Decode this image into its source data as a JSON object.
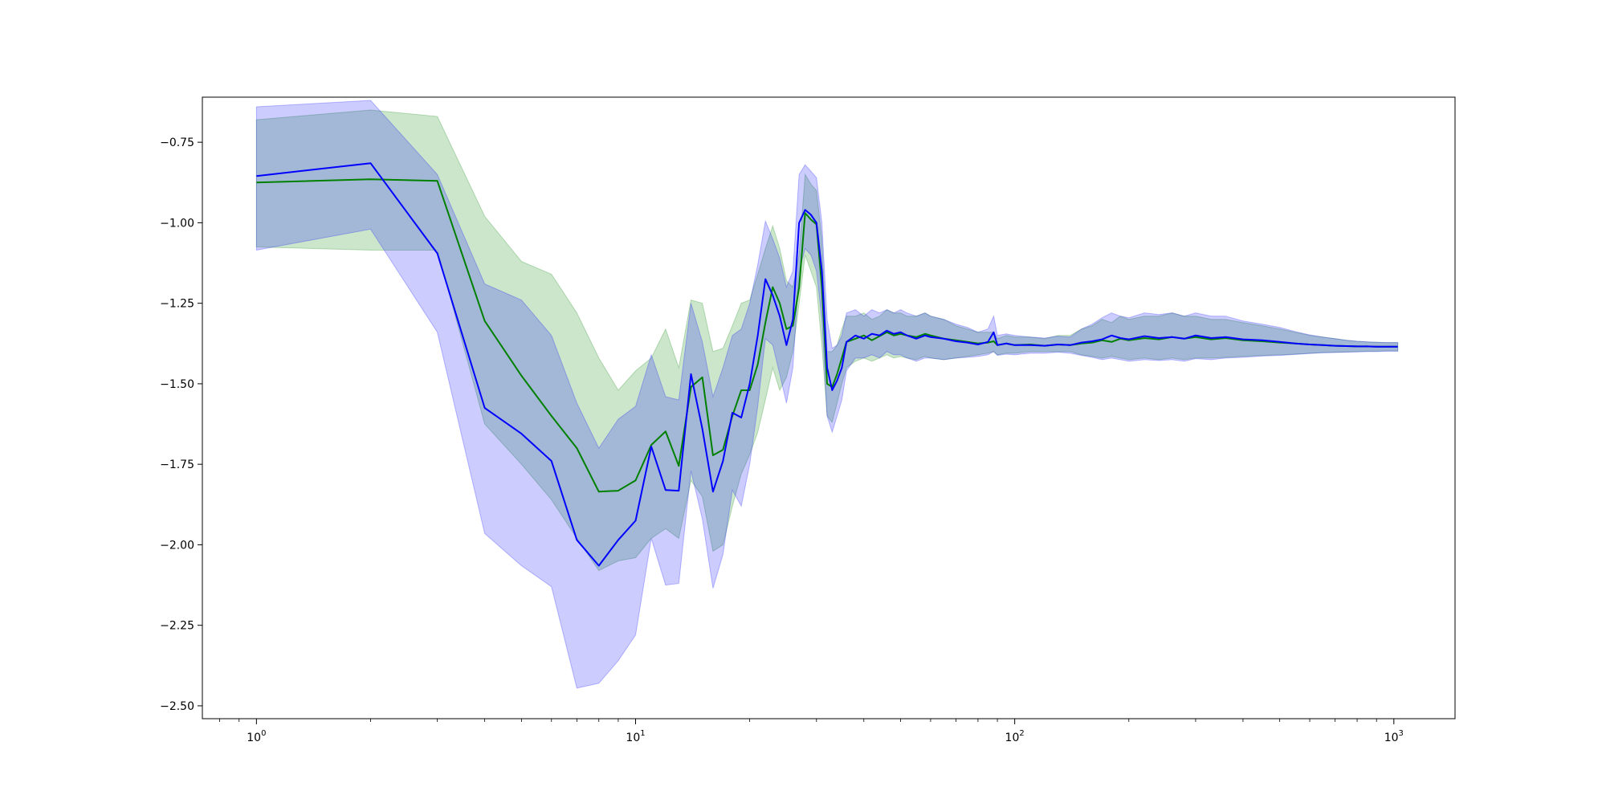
{
  "chart_data": {
    "type": "line",
    "title": "",
    "xlabel": "",
    "ylabel": "",
    "xscale": "log",
    "xlim": [
      0.72,
      1450
    ],
    "ylim": [
      -2.54,
      -0.61
    ],
    "grid": false,
    "legend": "none",
    "x_ticks": [
      {
        "base": "10",
        "exp": "0",
        "value": 1
      },
      {
        "base": "10",
        "exp": "1",
        "value": 10
      },
      {
        "base": "10",
        "exp": "2",
        "value": 100
      },
      {
        "base": "10",
        "exp": "3",
        "value": 1000
      }
    ],
    "y_ticks": [
      {
        "label": "−0.75",
        "value": -0.75
      },
      {
        "label": "−1.00",
        "value": -1.0
      },
      {
        "label": "−1.25",
        "value": -1.25
      },
      {
        "label": "−1.50",
        "value": -1.5
      },
      {
        "label": "−1.75",
        "value": -1.75
      },
      {
        "label": "−2.00",
        "value": -2.0
      },
      {
        "label": "−2.25",
        "value": -2.25
      },
      {
        "label": "−2.50",
        "value": -2.5
      }
    ],
    "series": [
      {
        "color": "#008000",
        "band_color": "#008000",
        "band_opacity": 0.2,
        "x": [
          1,
          2,
          3,
          4,
          5,
          6,
          7,
          8,
          9,
          10,
          11,
          12,
          13,
          14,
          15,
          16,
          17,
          18,
          19,
          20,
          21,
          22,
          23,
          24,
          25,
          26,
          27,
          28,
          29,
          30,
          31,
          32,
          33,
          34,
          35,
          36,
          38,
          40,
          42,
          44,
          46,
          48,
          50,
          52,
          55,
          58,
          60,
          65,
          70,
          75,
          80,
          85,
          88,
          90,
          95,
          100,
          110,
          120,
          130,
          140,
          150,
          160,
          170,
          180,
          190,
          200,
          220,
          240,
          260,
          280,
          300,
          330,
          360,
          400,
          450,
          500,
          550,
          600,
          650,
          700,
          750,
          800,
          850,
          900,
          950,
          1000,
          1024
        ],
        "y": [
          -0.875,
          -0.865,
          -0.87,
          -1.305,
          -1.475,
          -1.6,
          -1.7,
          -1.835,
          -1.832,
          -1.8,
          -1.69,
          -1.648,
          -1.755,
          -1.51,
          -1.48,
          -1.722,
          -1.705,
          -1.6,
          -1.52,
          -1.52,
          -1.44,
          -1.31,
          -1.2,
          -1.25,
          -1.33,
          -1.32,
          -1.2,
          -0.97,
          -0.99,
          -1.005,
          -1.2,
          -1.5,
          -1.51,
          -1.47,
          -1.42,
          -1.37,
          -1.36,
          -1.35,
          -1.365,
          -1.352,
          -1.34,
          -1.35,
          -1.345,
          -1.35,
          -1.355,
          -1.345,
          -1.35,
          -1.36,
          -1.365,
          -1.37,
          -1.375,
          -1.372,
          -1.368,
          -1.38,
          -1.375,
          -1.38,
          -1.378,
          -1.382,
          -1.378,
          -1.38,
          -1.375,
          -1.372,
          -1.365,
          -1.37,
          -1.36,
          -1.365,
          -1.358,
          -1.362,
          -1.355,
          -1.36,
          -1.355,
          -1.362,
          -1.358,
          -1.365,
          -1.368,
          -1.372,
          -1.375,
          -1.378,
          -1.38,
          -1.382,
          -1.383,
          -1.384,
          -1.384,
          -1.385,
          -1.385,
          -1.385,
          -1.385
        ],
        "y_low": [
          -1.075,
          -1.085,
          -1.085,
          -1.625,
          -1.75,
          -1.86,
          -1.98,
          -2.08,
          -2.05,
          -2.04,
          -1.98,
          -1.95,
          -1.98,
          -1.8,
          -1.85,
          -2.02,
          -2.0,
          -1.88,
          -1.78,
          -1.72,
          -1.65,
          -1.55,
          -1.45,
          -1.52,
          -1.48,
          -1.4,
          -1.25,
          -1.1,
          -1.15,
          -1.2,
          -1.38,
          -1.6,
          -1.62,
          -1.56,
          -1.5,
          -1.45,
          -1.43,
          -1.42,
          -1.43,
          -1.42,
          -1.41,
          -1.42,
          -1.415,
          -1.42,
          -1.425,
          -1.415,
          -1.42,
          -1.425,
          -1.42,
          -1.415,
          -1.41,
          -1.405,
          -1.4,
          -1.41,
          -1.405,
          -1.405,
          -1.4,
          -1.4,
          -1.4,
          -1.4,
          -1.41,
          -1.415,
          -1.42,
          -1.415,
          -1.42,
          -1.425,
          -1.42,
          -1.425,
          -1.42,
          -1.425,
          -1.42,
          -1.42,
          -1.418,
          -1.415,
          -1.412,
          -1.41,
          -1.408,
          -1.405,
          -1.403,
          -1.402,
          -1.401,
          -1.4,
          -1.399,
          -1.399,
          -1.398,
          -1.398,
          -1.398
        ],
        "y_high": [
          -0.68,
          -0.65,
          -0.67,
          -0.98,
          -1.12,
          -1.16,
          -1.28,
          -1.42,
          -1.52,
          -1.46,
          -1.42,
          -1.33,
          -1.45,
          -1.24,
          -1.25,
          -1.4,
          -1.39,
          -1.32,
          -1.25,
          -1.24,
          -1.16,
          -1.08,
          -1.01,
          -1.08,
          -1.18,
          -1.2,
          -1.1,
          -0.85,
          -0.88,
          -0.9,
          -1.05,
          -1.4,
          -1.4,
          -1.38,
          -1.33,
          -1.29,
          -1.29,
          -1.28,
          -1.3,
          -1.29,
          -1.27,
          -1.28,
          -1.28,
          -1.29,
          -1.29,
          -1.28,
          -1.29,
          -1.3,
          -1.32,
          -1.33,
          -1.34,
          -1.34,
          -1.34,
          -1.36,
          -1.35,
          -1.355,
          -1.355,
          -1.36,
          -1.35,
          -1.35,
          -1.33,
          -1.32,
          -1.3,
          -1.31,
          -1.29,
          -1.3,
          -1.29,
          -1.29,
          -1.28,
          -1.29,
          -1.29,
          -1.3,
          -1.3,
          -1.31,
          -1.32,
          -1.33,
          -1.34,
          -1.35,
          -1.355,
          -1.36,
          -1.365,
          -1.368,
          -1.37,
          -1.371,
          -1.372,
          -1.372,
          -1.372
        ]
      },
      {
        "color": "#0000ff",
        "band_color": "#0000ff",
        "band_opacity": 0.2,
        "x": [
          1,
          2,
          3,
          4,
          5,
          6,
          7,
          8,
          9,
          10,
          11,
          12,
          13,
          14,
          15,
          16,
          17,
          18,
          19,
          20,
          21,
          22,
          23,
          24,
          25,
          26,
          27,
          28,
          29,
          30,
          31,
          32,
          33,
          34,
          35,
          36,
          38,
          40,
          42,
          44,
          46,
          48,
          50,
          52,
          55,
          58,
          60,
          65,
          70,
          75,
          80,
          85,
          88,
          90,
          95,
          100,
          110,
          120,
          130,
          140,
          150,
          160,
          170,
          180,
          190,
          200,
          220,
          240,
          260,
          280,
          300,
          330,
          360,
          400,
          450,
          500,
          550,
          600,
          650,
          700,
          750,
          800,
          850,
          900,
          950,
          1000,
          1024
        ],
        "y": [
          -0.855,
          -0.815,
          -1.095,
          -1.575,
          -1.655,
          -1.74,
          -1.985,
          -2.065,
          -1.985,
          -1.925,
          -1.695,
          -1.83,
          -1.832,
          -1.47,
          -1.64,
          -1.835,
          -1.74,
          -1.59,
          -1.605,
          -1.5,
          -1.35,
          -1.175,
          -1.225,
          -1.29,
          -1.38,
          -1.3,
          -1.0,
          -0.96,
          -0.975,
          -1.0,
          -1.15,
          -1.45,
          -1.52,
          -1.49,
          -1.45,
          -1.37,
          -1.35,
          -1.36,
          -1.345,
          -1.35,
          -1.335,
          -1.345,
          -1.34,
          -1.35,
          -1.36,
          -1.35,
          -1.355,
          -1.36,
          -1.368,
          -1.372,
          -1.378,
          -1.37,
          -1.34,
          -1.38,
          -1.375,
          -1.38,
          -1.38,
          -1.382,
          -1.378,
          -1.38,
          -1.372,
          -1.368,
          -1.362,
          -1.35,
          -1.358,
          -1.362,
          -1.352,
          -1.358,
          -1.355,
          -1.36,
          -1.35,
          -1.358,
          -1.355,
          -1.362,
          -1.365,
          -1.37,
          -1.375,
          -1.378,
          -1.38,
          -1.382,
          -1.383,
          -1.384,
          -1.384,
          -1.385,
          -1.385,
          -1.385,
          -1.385
        ],
        "y_low": [
          -1.085,
          -1.02,
          -1.34,
          -1.965,
          -2.065,
          -2.13,
          -2.445,
          -2.43,
          -2.36,
          -2.28,
          -1.98,
          -2.125,
          -2.12,
          -1.77,
          -1.92,
          -2.135,
          -2.03,
          -1.83,
          -1.88,
          -1.75,
          -1.57,
          -1.36,
          -1.38,
          -1.47,
          -1.56,
          -1.45,
          -1.15,
          -1.08,
          -1.1,
          -1.15,
          -1.3,
          -1.6,
          -1.65,
          -1.6,
          -1.55,
          -1.46,
          -1.42,
          -1.42,
          -1.41,
          -1.42,
          -1.4,
          -1.41,
          -1.41,
          -1.42,
          -1.43,
          -1.42,
          -1.42,
          -1.425,
          -1.42,
          -1.418,
          -1.415,
          -1.41,
          -1.4,
          -1.412,
          -1.408,
          -1.41,
          -1.405,
          -1.405,
          -1.402,
          -1.405,
          -1.412,
          -1.418,
          -1.425,
          -1.42,
          -1.425,
          -1.43,
          -1.425,
          -1.428,
          -1.425,
          -1.43,
          -1.422,
          -1.425,
          -1.42,
          -1.418,
          -1.414,
          -1.412,
          -1.409,
          -1.406,
          -1.404,
          -1.403,
          -1.402,
          -1.401,
          -1.4,
          -1.4,
          -1.399,
          -1.399,
          -1.399
        ],
        "y_high": [
          -0.64,
          -0.62,
          -0.85,
          -1.19,
          -1.24,
          -1.35,
          -1.56,
          -1.7,
          -1.61,
          -1.57,
          -1.41,
          -1.54,
          -1.55,
          -1.25,
          -1.37,
          -1.54,
          -1.45,
          -1.35,
          -1.33,
          -1.25,
          -1.13,
          -0.995,
          -1.05,
          -1.11,
          -1.2,
          -1.15,
          -0.85,
          -0.82,
          -0.84,
          -0.86,
          -1.0,
          -1.3,
          -1.39,
          -1.38,
          -1.35,
          -1.28,
          -1.27,
          -1.29,
          -1.27,
          -1.28,
          -1.27,
          -1.28,
          -1.27,
          -1.28,
          -1.29,
          -1.28,
          -1.29,
          -1.3,
          -1.315,
          -1.325,
          -1.34,
          -1.33,
          -1.29,
          -1.35,
          -1.345,
          -1.35,
          -1.355,
          -1.358,
          -1.352,
          -1.355,
          -1.33,
          -1.315,
          -1.295,
          -1.28,
          -1.29,
          -1.295,
          -1.28,
          -1.285,
          -1.28,
          -1.29,
          -1.28,
          -1.29,
          -1.29,
          -1.305,
          -1.315,
          -1.325,
          -1.338,
          -1.348,
          -1.355,
          -1.36,
          -1.365,
          -1.368,
          -1.37,
          -1.371,
          -1.372,
          -1.372,
          -1.372
        ]
      }
    ]
  }
}
